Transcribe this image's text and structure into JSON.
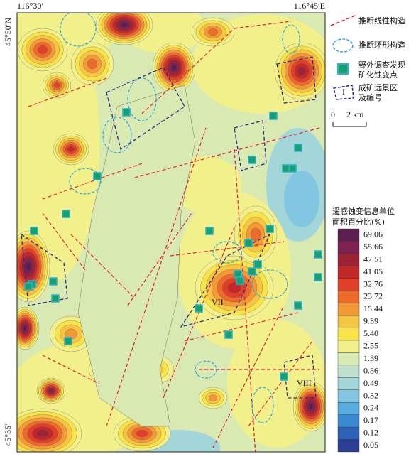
{
  "map": {
    "corners": {
      "top_left": "116°30′",
      "top_right": "116°45′E",
      "left_top": "45°50′N",
      "left_bottom": "45°35′"
    },
    "zone_labels": [
      "VII",
      "VIII"
    ]
  },
  "legend": {
    "items": [
      {
        "lines": [
          "推断线性构造"
        ]
      },
      {
        "lines": [
          "推断环形构造"
        ]
      },
      {
        "lines": [
          "野外调查发现",
          "矿化蚀变点"
        ]
      },
      {
        "lines": [
          "成矿远景区",
          "及编号"
        ],
        "symbol_label": "I"
      }
    ]
  },
  "scale": {
    "zero": "0",
    "length": "2 km"
  },
  "color_scale": {
    "title": [
      "遥感蚀变信息单位",
      "面积百分比(%)"
    ],
    "classes": [
      {
        "label": "69.06",
        "color": "#5a1f4e"
      },
      {
        "label": "55.66",
        "color": "#7c2150"
      },
      {
        "label": "47.51",
        "color": "#9c2236"
      },
      {
        "label": "41.05",
        "color": "#c2282a"
      },
      {
        "label": "32.76",
        "color": "#e0402a"
      },
      {
        "label": "23.72",
        "color": "#ec6a2c"
      },
      {
        "label": "15.44",
        "color": "#f39a36"
      },
      {
        "label": "9.39",
        "color": "#f7c544"
      },
      {
        "label": "5.40",
        "color": "#f8e44a"
      },
      {
        "label": "2.55",
        "color": "#f2f08a"
      },
      {
        "label": "1.39",
        "color": "#d9e9b2"
      },
      {
        "label": "0.86",
        "color": "#bfe0cc"
      },
      {
        "label": "0.49",
        "color": "#a3d6d8"
      },
      {
        "label": "0.32",
        "color": "#82c6e2"
      },
      {
        "label": "0.24",
        "color": "#58ace0"
      },
      {
        "label": "0.17",
        "color": "#3a8ad2"
      },
      {
        "label": "0.12",
        "color": "#2e62b6"
      },
      {
        "label": "0.05",
        "color": "#2c3f96"
      }
    ]
  }
}
